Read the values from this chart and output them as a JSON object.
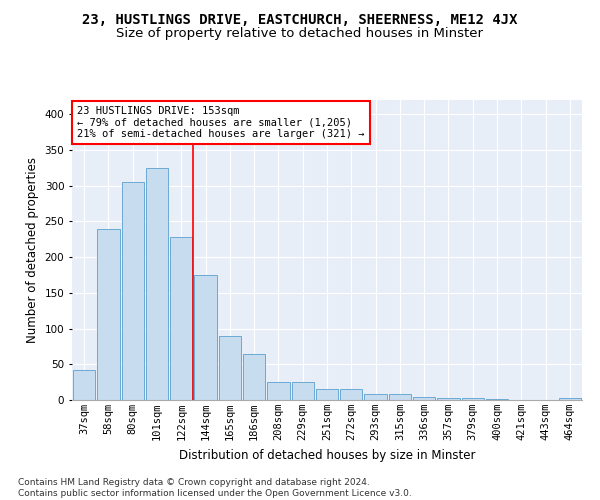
{
  "title": "23, HUSTLINGS DRIVE, EASTCHURCH, SHEERNESS, ME12 4JX",
  "subtitle": "Size of property relative to detached houses in Minster",
  "xlabel": "Distribution of detached houses by size in Minster",
  "ylabel": "Number of detached properties",
  "categories": [
    "37sqm",
    "58sqm",
    "80sqm",
    "101sqm",
    "122sqm",
    "144sqm",
    "165sqm",
    "186sqm",
    "208sqm",
    "229sqm",
    "251sqm",
    "272sqm",
    "293sqm",
    "315sqm",
    "336sqm",
    "357sqm",
    "379sqm",
    "400sqm",
    "421sqm",
    "443sqm",
    "464sqm"
  ],
  "values": [
    42,
    240,
    305,
    325,
    228,
    175,
    90,
    65,
    25,
    25,
    15,
    15,
    9,
    9,
    4,
    3,
    3,
    2,
    0,
    0,
    3
  ],
  "bar_color": "#c8dcf0",
  "bar_edge_color": "#6aaad4",
  "vline_color": "red",
  "annotation_text": "23 HUSTLINGS DRIVE: 153sqm\n← 79% of detached houses are smaller (1,205)\n21% of semi-detached houses are larger (321) →",
  "annotation_box_color": "white",
  "annotation_box_edge_color": "red",
  "ylim": [
    0,
    420
  ],
  "yticks": [
    0,
    50,
    100,
    150,
    200,
    250,
    300,
    350,
    400
  ],
  "background_color": "#e8eef8",
  "footer_text": "Contains HM Land Registry data © Crown copyright and database right 2024.\nContains public sector information licensed under the Open Government Licence v3.0.",
  "title_fontsize": 10,
  "subtitle_fontsize": 9.5,
  "axis_label_fontsize": 8.5,
  "tick_fontsize": 7.5,
  "annotation_fontsize": 7.5,
  "footer_fontsize": 6.5
}
